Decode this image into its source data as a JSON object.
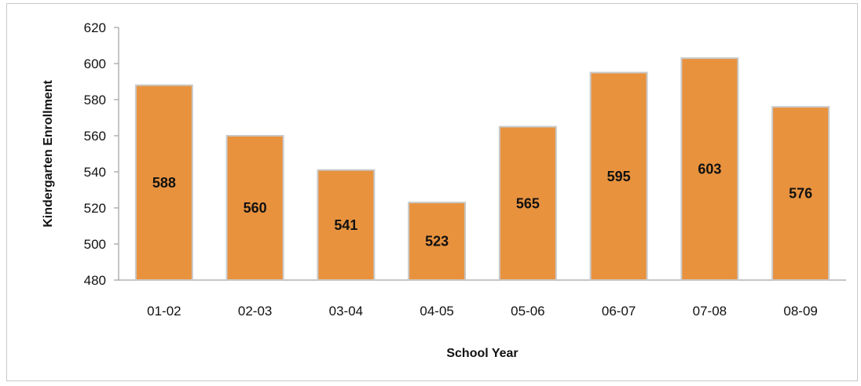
{
  "chart_data": {
    "type": "bar",
    "categories": [
      "01-02",
      "02-03",
      "03-04",
      "04-05",
      "05-06",
      "06-07",
      "07-08",
      "08-09"
    ],
    "values": [
      588,
      560,
      541,
      523,
      565,
      595,
      603,
      576
    ],
    "data_labels": [
      "588",
      "560",
      "541",
      "523",
      "565",
      "595",
      "603",
      "576"
    ],
    "title": "",
    "xlabel": "School Year",
    "ylabel": "Kindergarten Enrollment",
    "ylim": [
      480,
      620
    ],
    "yticks": [
      480,
      500,
      520,
      540,
      560,
      580,
      600,
      620
    ],
    "ytick_labels": [
      "480",
      "500",
      "520",
      "540",
      "560",
      "580",
      "600",
      "620"
    ],
    "grid": false,
    "legend": "none",
    "bar_color": "#E8923E",
    "bar_edge_color": "#C9C9C9"
  }
}
